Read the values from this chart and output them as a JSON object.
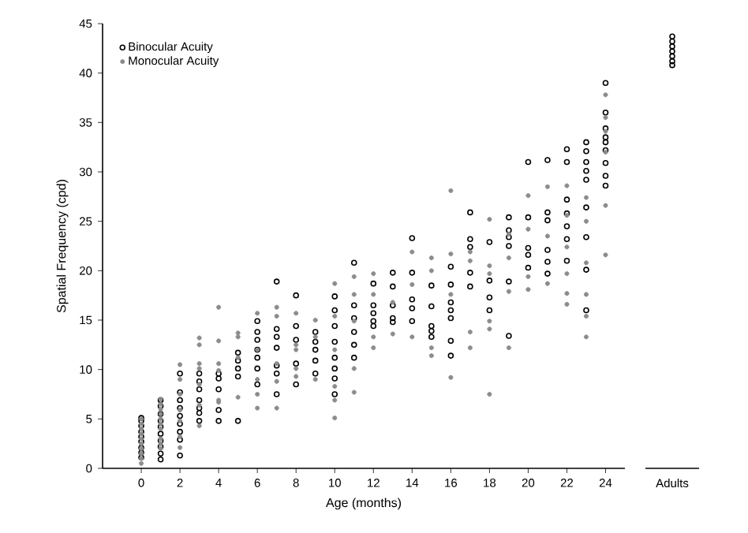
{
  "chart_data": [
    {
      "type": "scatter",
      "xlabel": "Age (months)",
      "ylabel": "Spatial Frequency (cpd)",
      "xlim": [
        -2,
        25
      ],
      "ylim": [
        0,
        45
      ],
      "xticks": [
        0,
        2,
        4,
        6,
        8,
        10,
        12,
        14,
        16,
        18,
        20,
        22,
        24
      ],
      "yticks": [
        0,
        5,
        10,
        15,
        20,
        25,
        30,
        35,
        40,
        45
      ],
      "legend": "top left",
      "marker": "circle",
      "tick_labels": true,
      "series": [
        {
          "name": "Binocular Acuity",
          "color": "#000000",
          "x": [
            0,
            0,
            0,
            0,
            0,
            0,
            0,
            0,
            0,
            1,
            1,
            1,
            1,
            1,
            1,
            1,
            1,
            1,
            1,
            2,
            2,
            2,
            2,
            2,
            2,
            2,
            2,
            2,
            3,
            3,
            3,
            3,
            3,
            3,
            3,
            4,
            4,
            4,
            4,
            4,
            5,
            5,
            5,
            5,
            5,
            6,
            6,
            6,
            6,
            6,
            6,
            6,
            7,
            7,
            7,
            7,
            7,
            7,
            7,
            8,
            8,
            8,
            8,
            8,
            9,
            9,
            9,
            9,
            9,
            10,
            10,
            10,
            10,
            10,
            10,
            10,
            10,
            11,
            11,
            11,
            11,
            11,
            11,
            12,
            12,
            12,
            12,
            12,
            13,
            13,
            13,
            13,
            13,
            14,
            14,
            14,
            14,
            14,
            15,
            15,
            15,
            15,
            15,
            16,
            16,
            16,
            16,
            16,
            16,
            16,
            17,
            17,
            17,
            17,
            17,
            18,
            18,
            18,
            18,
            19,
            19,
            19,
            19,
            19,
            19,
            20,
            20,
            20,
            20,
            20,
            21,
            21,
            21,
            21,
            21,
            21,
            22,
            22,
            22,
            22,
            22,
            22,
            22,
            23,
            23,
            23,
            23,
            23,
            23,
            23,
            23,
            23,
            24,
            24,
            24,
            24,
            24,
            24,
            24,
            24,
            24
          ],
          "values": [
            5.1,
            4.8,
            4.3,
            3.7,
            3.2,
            2.7,
            2.1,
            1.6,
            1.1,
            6.9,
            6.3,
            5.5,
            4.8,
            4.2,
            3.5,
            2.8,
            2.2,
            1.5,
            0.9,
            9.6,
            7.7,
            6.9,
            6.1,
            5.3,
            4.5,
            3.7,
            2.9,
            1.3,
            9.6,
            8.8,
            8,
            6.9,
            6.1,
            5.6,
            4.8,
            9.6,
            9.1,
            8,
            5.9,
            4.8,
            11.7,
            10.9,
            10.1,
            9.3,
            4.8,
            14.9,
            13.8,
            13,
            12,
            11.2,
            10.1,
            8.5,
            18.9,
            14.1,
            13.3,
            12.2,
            10.4,
            9.6,
            7.5,
            17.5,
            14.4,
            13,
            10.6,
            8.5,
            13.8,
            12.8,
            12,
            10.9,
            9.6,
            17.4,
            16,
            14.4,
            12.8,
            11.2,
            10.1,
            9.1,
            7.5,
            20.8,
            16.5,
            15.2,
            13.8,
            12.5,
            11.2,
            18.7,
            16.5,
            15.7,
            14.9,
            14.4,
            19.8,
            18.4,
            16.5,
            15.2,
            14.8,
            23.3,
            19.8,
            17.1,
            16.2,
            14.9,
            18.5,
            16.4,
            14.4,
            13.9,
            13.3,
            20.4,
            18.6,
            16.8,
            16,
            15.2,
            12.9,
            11.4,
            25.9,
            23.2,
            22.4,
            19.8,
            18.4,
            22.9,
            19,
            17.3,
            16,
            25.4,
            24.1,
            23.4,
            22.5,
            18.9,
            13.4,
            31,
            25.4,
            22.3,
            21.6,
            20.3,
            31.2,
            25.9,
            25.1,
            22.1,
            20.9,
            19.7,
            32.3,
            31,
            27.2,
            25.8,
            24.5,
            23.2,
            21,
            33,
            32.1,
            31,
            30.1,
            29.2,
            26.4,
            23.4,
            20.1,
            16,
            39,
            36,
            34.4,
            33.5,
            33,
            32.2,
            30.9,
            29.6,
            28.6
          ]
        },
        {
          "name": "Monocular Acuity",
          "color": "#8c8c8c",
          "x": [
            0,
            0,
            0,
            0,
            0,
            0,
            0,
            0,
            0,
            0,
            1,
            1,
            1,
            1,
            1,
            1,
            1,
            1,
            1,
            1,
            2,
            2,
            2,
            2,
            2,
            2,
            2,
            3,
            3,
            3,
            3,
            3,
            3,
            3,
            4,
            4,
            4,
            4,
            4,
            4,
            5,
            5,
            5,
            5,
            6,
            6,
            6,
            6,
            6,
            7,
            7,
            7,
            7,
            7,
            8,
            8,
            8,
            8,
            8,
            9,
            9,
            9,
            10,
            10,
            10,
            10,
            10,
            10,
            11,
            11,
            11,
            11,
            11,
            12,
            12,
            12,
            12,
            13,
            13,
            14,
            14,
            14,
            15,
            15,
            15,
            15,
            16,
            16,
            16,
            16,
            17,
            17,
            17,
            17,
            18,
            18,
            18,
            18,
            18,
            18,
            19,
            19,
            19,
            19,
            20,
            20,
            20,
            20,
            21,
            21,
            21,
            22,
            22,
            22,
            22,
            22,
            22,
            23,
            23,
            23,
            23,
            23,
            23,
            24,
            24,
            24,
            24,
            24,
            24
          ],
          "values": [
            0.5,
            1,
            1.5,
            2,
            2.5,
            3,
            3.5,
            4,
            4.5,
            5,
            7,
            6.5,
            6,
            5.5,
            5,
            4.5,
            4,
            3,
            2.5,
            2,
            10.5,
            9,
            7.5,
            5.9,
            4.8,
            3.2,
            2.1,
            13.2,
            12.5,
            10.6,
            10.1,
            8.5,
            6.4,
            4.3,
            16.3,
            12.9,
            10.6,
            9.9,
            6.9,
            6.7,
            13.7,
            13.3,
            11.2,
            7.2,
            15.7,
            12,
            9,
            7.5,
            6.1,
            16.3,
            15.4,
            10.6,
            8.8,
            6.1,
            15.7,
            12.5,
            12,
            10.1,
            9.3,
            15,
            13.3,
            9,
            18.7,
            15.4,
            12,
            8.3,
            6.9,
            5.1,
            19.4,
            17.6,
            14.9,
            10.1,
            7.7,
            19.7,
            17.6,
            13.3,
            12.2,
            16.8,
            13.6,
            21.9,
            18.6,
            13.3,
            21.3,
            20,
            12.2,
            11.4,
            28.1,
            21.7,
            17.6,
            9.2,
            21.9,
            21,
            13.8,
            12.2,
            25.2,
            20.5,
            19.7,
            14.9,
            14.1,
            7.5,
            23.7,
            21.3,
            17.9,
            12.2,
            27.6,
            24.2,
            19.4,
            18.1,
            28.5,
            23.5,
            18.7,
            28.6,
            25.6,
            22.4,
            19.7,
            17.7,
            16.6,
            27.4,
            25,
            20.8,
            17.6,
            15.4,
            13.3,
            37.8,
            35.5,
            34.1,
            32,
            26.6,
            21.6
          ]
        }
      ]
    },
    {
      "type": "scatter",
      "categories": [
        "Adults"
      ],
      "ylim": [
        0,
        45
      ],
      "tick_labels": "x",
      "marker": "circle",
      "series": [
        {
          "color": "#000000",
          "x": [
            "Adults",
            "Adults",
            "Adults",
            "Adults",
            "Adults",
            "Adults",
            "Adults"
          ],
          "values": [
            43.7,
            43.2,
            42.7,
            42.2,
            41.7,
            41.2,
            40.8
          ]
        }
      ]
    }
  ]
}
